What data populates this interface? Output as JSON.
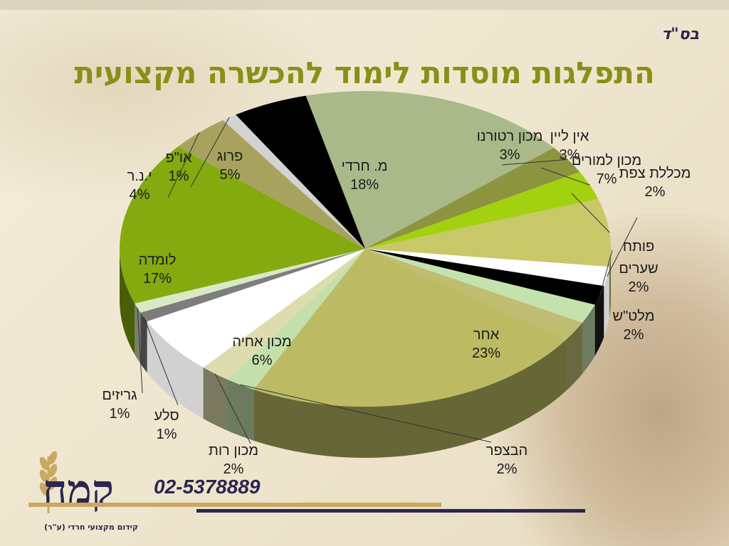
{
  "header_note": "בס\"ד",
  "title": "התפלגות מוסדות לימוד להכשרה מקצועית",
  "phone": "02-5378889",
  "logo_text": "קמח",
  "logo_subtitle": "קידום מקצועי חרדי (ע\"ר)",
  "chart_data": {
    "type": "pie",
    "title": "התפלגות מוסדות לימוד להכשרה מקצועית",
    "slices": [
      {
        "label": "מ. חרדי",
        "value": 18,
        "display": "18%",
        "color": "#a9b98a"
      },
      {
        "label": "מכון רטורנו",
        "value": 3,
        "display": "3%",
        "color": "#8c9440"
      },
      {
        "label": "אין ליין",
        "value": 3,
        "display": "3%",
        "color": "#a2d10f"
      },
      {
        "label": "מכון למורים",
        "value": 7,
        "display": "7%",
        "color": "#c9c868"
      },
      {
        "label": "מכללת צפת",
        "value": 2,
        "display": "2%",
        "color": "#ffffff"
      },
      {
        "label": "פותח",
        "value": 2,
        "display": "",
        "color": "#000000"
      },
      {
        "label": "שערים",
        "value": 2,
        "display": "2%",
        "color": "#c4e2ae"
      },
      {
        "label": "מלט\"ש",
        "value": 2,
        "display": "2%",
        "color": "#bfbd72"
      },
      {
        "label": "אחר",
        "value": 23,
        "display": "23%",
        "color": "#bcba62"
      },
      {
        "label": "הבצפר",
        "value": 2,
        "display": "2%",
        "color": "#c3e0ab"
      },
      {
        "label": "מכון רות",
        "value": 2,
        "display": "2%",
        "color": "#dedcae"
      },
      {
        "label": "מכון אחיה",
        "value": 6,
        "display": "6%",
        "color": "#ffffff"
      },
      {
        "label": "סלע",
        "value": 1,
        "display": "1%",
        "color": "#7d7d7d"
      },
      {
        "label": "גריזים",
        "value": 1,
        "display": "1%",
        "color": "#d9e8c6"
      },
      {
        "label": "לומדה",
        "value": 17,
        "display": "17%",
        "color": "#84aa10"
      },
      {
        "label": "י.נ.ר",
        "value": 4,
        "display": "4%",
        "color": "#a7a35e"
      },
      {
        "label": "או\"פ",
        "value": 1,
        "display": "1%",
        "color": "#d2d2d2"
      },
      {
        "label": "פרוג",
        "value": 5,
        "display": "5%",
        "color": "#000000"
      }
    ]
  }
}
